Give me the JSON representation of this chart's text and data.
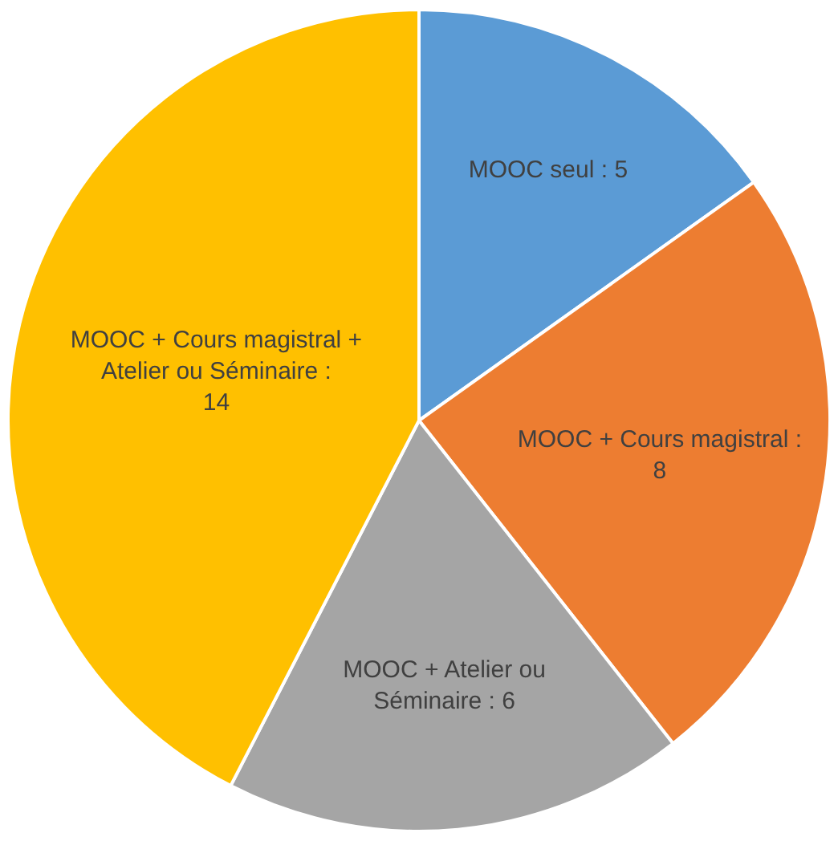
{
  "chart_data": {
    "type": "pie",
    "categories": [
      "MOOC seul : 5",
      "MOOC + Cours magistral : 8",
      "MOOC + Atelier ou Séminaire : 6",
      "MOOC + Cours magistral + Atelier ou Séminaire : 14"
    ],
    "values": [
      5,
      8,
      6,
      14
    ],
    "colors": [
      "#5b9bd5",
      "#ed7d31",
      "#a5a5a5",
      "#ffc000"
    ],
    "legend": false
  }
}
